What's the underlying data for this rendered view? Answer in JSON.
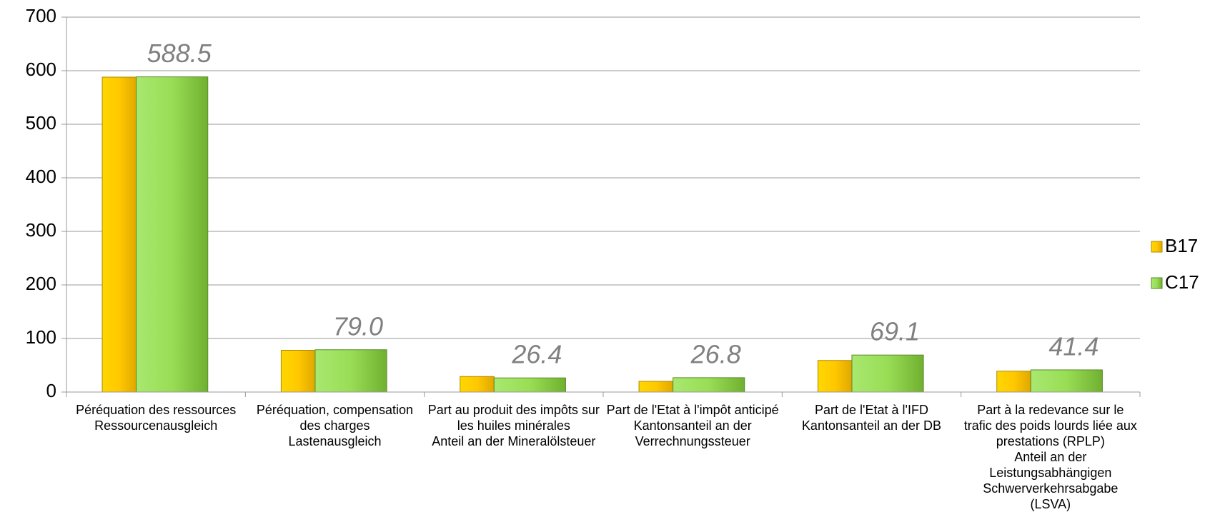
{
  "chart_data": {
    "type": "bar",
    "categories": [
      "Péréquation des ressources\nRessourcenausgleich",
      "Péréquation, compensation des charges\nLastenausgleich",
      "Part au produit des impôts sur les huiles minérales\nAnteil an der Mineralölsteuer",
      "Part de l'Etat à l'impôt anticipé\nKantonsanteil an der Verrechnungssteuer",
      "Part de l'Etat à l'IFD\nKantonsanteil an der DB",
      "Part à la redevance sur le trafic des poids lourds liée aux prestations (RPLP)\nAnteil an der Leistungsabhängigen Schwerverkehrsabgabe (LSVA)"
    ],
    "series": [
      {
        "name": "B17",
        "color": "#ffc800",
        "values": [
          588,
          78,
          29,
          20,
          59,
          39
        ]
      },
      {
        "name": "C17",
        "color": "#99dd55",
        "values": [
          588.5,
          79,
          26.4,
          26.8,
          69.1,
          41.4
        ],
        "value_labels": [
          "588.5",
          "79.0",
          "26.4",
          "26.8",
          "69.1",
          "41.4"
        ]
      }
    ],
    "ylim": [
      0,
      700
    ],
    "yticks": [
      0,
      100,
      200,
      300,
      400,
      500,
      600,
      700
    ],
    "grid": true,
    "legend": "right"
  }
}
